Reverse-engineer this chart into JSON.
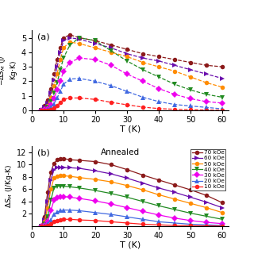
{
  "panel_a": {
    "label": "(a)",
    "ylabel": "-ΔS_M (J/Kg·K)",
    "ylim": [
      0,
      5.5
    ],
    "yticks": [
      0,
      1,
      2,
      3,
      4,
      5
    ],
    "xlim": [
      0,
      62
    ],
    "xticks": [
      0,
      10,
      20,
      30,
      40,
      50,
      60
    ]
  },
  "panel_b": {
    "label": "(b)",
    "ylabel": "ΔS_M (J/Kg-K)",
    "ylim": [
      0,
      13
    ],
    "yticks": [
      2,
      4,
      6,
      8,
      10,
      12
    ],
    "xlim": [
      0,
      62
    ],
    "xticks": [
      0,
      10,
      20,
      30,
      40,
      50,
      60
    ],
    "annotation": "Annealed"
  },
  "xlabel": "T (K)",
  "series": [
    {
      "label": "70 kOe",
      "color": "#8B1A1A",
      "marker": "o",
      "markersize": 4,
      "top_T": [
        3,
        4,
        5,
        6,
        7,
        8,
        9,
        10,
        12,
        15,
        20,
        25,
        30,
        35,
        40,
        45,
        50,
        55,
        60
      ],
      "top_Y": [
        0.0,
        0.3,
        0.7,
        1.5,
        2.5,
        3.5,
        4.3,
        5.0,
        5.2,
        5.0,
        4.8,
        4.5,
        4.2,
        3.9,
        3.7,
        3.5,
        3.3,
        3.1,
        3.0
      ],
      "bot_T": [
        3,
        4,
        5,
        6,
        7,
        8,
        9,
        10,
        12,
        15,
        20,
        25,
        30,
        35,
        40,
        45,
        50,
        55,
        60
      ],
      "bot_Y": [
        0.0,
        1.5,
        5.5,
        8.8,
        10.2,
        10.8,
        11.0,
        11.0,
        10.8,
        10.7,
        10.5,
        10.0,
        9.2,
        8.3,
        7.5,
        6.7,
        5.9,
        5.0,
        3.8
      ]
    },
    {
      "label": "60 kOe",
      "color": "#6A0DAD",
      "marker": ">",
      "markersize": 4,
      "top_T": [
        3,
        4,
        5,
        6,
        7,
        8,
        9,
        10,
        12,
        15,
        20,
        25,
        30,
        35,
        40,
        45,
        50,
        55,
        60
      ],
      "top_Y": [
        0.0,
        0.2,
        0.5,
        1.2,
        2.1,
        3.0,
        4.0,
        4.8,
        5.0,
        4.9,
        4.6,
        4.3,
        3.9,
        3.6,
        3.4,
        3.1,
        2.8,
        2.5,
        2.2
      ],
      "bot_T": [
        3,
        4,
        5,
        6,
        7,
        8,
        9,
        10,
        12,
        15,
        20,
        25,
        30,
        35,
        40,
        45,
        50,
        55,
        60
      ],
      "bot_Y": [
        0.0,
        1.0,
        4.0,
        7.5,
        9.2,
        9.6,
        9.6,
        9.5,
        9.5,
        9.4,
        9.0,
        8.5,
        7.8,
        7.0,
        6.2,
        5.5,
        4.7,
        3.9,
        3.0
      ]
    },
    {
      "label": "50 kOe",
      "color": "#FF8C00",
      "marker": "o",
      "markersize": 4,
      "top_T": [
        3,
        4,
        5,
        6,
        7,
        8,
        9,
        10,
        12,
        15,
        20,
        25,
        30,
        35,
        40,
        45,
        50,
        55,
        60
      ],
      "top_Y": [
        0.0,
        0.1,
        0.3,
        0.9,
        1.7,
        2.5,
        3.5,
        4.3,
        4.7,
        4.6,
        4.3,
        4.0,
        3.7,
        3.3,
        3.0,
        2.7,
        2.3,
        1.9,
        1.6
      ],
      "bot_T": [
        3,
        4,
        5,
        6,
        7,
        8,
        9,
        10,
        12,
        15,
        20,
        25,
        30,
        35,
        40,
        45,
        50,
        55,
        60
      ],
      "bot_Y": [
        0.0,
        0.7,
        3.0,
        6.0,
        7.8,
        8.1,
        8.2,
        8.2,
        8.1,
        7.9,
        7.6,
        7.2,
        6.6,
        5.9,
        5.1,
        4.4,
        3.7,
        3.0,
        2.2
      ]
    },
    {
      "label": "40 kOe",
      "color": "#228B22",
      "marker": "v",
      "markersize": 4,
      "top_T": [
        3,
        4,
        5,
        6,
        7,
        8,
        9,
        10,
        12,
        15,
        20,
        25,
        30,
        35,
        40,
        45,
        50,
        55,
        60
      ],
      "top_Y": [
        0.0,
        0.05,
        0.2,
        0.6,
        1.2,
        1.9,
        2.8,
        3.6,
        4.5,
        5.0,
        4.8,
        4.1,
        3.4,
        2.8,
        2.3,
        1.8,
        1.4,
        1.1,
        0.9
      ],
      "bot_T": [
        3,
        4,
        5,
        6,
        7,
        8,
        9,
        10,
        12,
        15,
        20,
        25,
        30,
        35,
        40,
        45,
        50,
        55,
        60
      ],
      "bot_Y": [
        0.0,
        0.3,
        1.5,
        4.2,
        6.2,
        6.5,
        6.5,
        6.5,
        6.4,
        6.2,
        5.8,
        5.3,
        4.7,
        4.0,
        3.3,
        2.7,
        2.1,
        1.6,
        1.1
      ]
    },
    {
      "label": "30 kOe",
      "color": "#EE00EE",
      "marker": "D",
      "markersize": 4,
      "top_T": [
        3,
        4,
        5,
        6,
        7,
        8,
        9,
        10,
        12,
        15,
        20,
        25,
        30,
        35,
        40,
        45,
        50,
        55,
        60
      ],
      "top_Y": [
        0.0,
        0.03,
        0.1,
        0.4,
        0.8,
        1.4,
        2.0,
        2.7,
        3.3,
        3.6,
        3.5,
        3.1,
        2.5,
        2.0,
        1.5,
        1.1,
        0.8,
        0.6,
        0.5
      ],
      "bot_T": [
        3,
        4,
        5,
        6,
        7,
        8,
        9,
        10,
        12,
        15,
        20,
        25,
        30,
        35,
        40,
        45,
        50,
        55,
        60
      ],
      "bot_Y": [
        0.0,
        0.1,
        0.7,
        2.5,
        4.2,
        4.6,
        4.7,
        4.8,
        4.7,
        4.5,
        4.1,
        3.6,
        3.0,
        2.4,
        1.8,
        1.3,
        0.9,
        0.6,
        0.4
      ]
    },
    {
      "label": "20 kOe",
      "color": "#4169E1",
      "marker": "^",
      "markersize": 4,
      "top_T": [
        3,
        4,
        5,
        6,
        7,
        8,
        9,
        10,
        12,
        15,
        20,
        25,
        30,
        35,
        40,
        45,
        50,
        55,
        60
      ],
      "top_Y": [
        0.0,
        0.01,
        0.05,
        0.2,
        0.45,
        0.85,
        1.3,
        1.8,
        2.15,
        2.2,
        2.0,
        1.7,
        1.3,
        0.9,
        0.6,
        0.4,
        0.3,
        0.2,
        0.1
      ],
      "bot_T": [
        3,
        4,
        5,
        6,
        7,
        8,
        9,
        10,
        12,
        15,
        20,
        25,
        30,
        35,
        40,
        45,
        50,
        55,
        60
      ],
      "bot_Y": [
        0.0,
        0.05,
        0.3,
        1.0,
        1.9,
        2.3,
        2.5,
        2.6,
        2.6,
        2.5,
        2.2,
        1.9,
        1.5,
        1.1,
        0.7,
        0.5,
        0.3,
        0.2,
        0.1
      ]
    },
    {
      "label": "10 kOe",
      "color": "#FF2020",
      "marker": "o",
      "markersize": 4,
      "top_T": [
        3,
        4,
        5,
        6,
        7,
        8,
        9,
        10,
        12,
        15,
        20,
        25,
        30,
        35,
        40,
        45,
        50,
        55,
        60
      ],
      "top_Y": [
        0.0,
        0.0,
        0.02,
        0.08,
        0.18,
        0.35,
        0.55,
        0.75,
        0.85,
        0.85,
        0.75,
        0.55,
        0.38,
        0.22,
        0.12,
        0.07,
        0.04,
        0.02,
        0.01
      ],
      "bot_T": [
        3,
        4,
        5,
        6,
        7,
        8,
        9,
        10,
        12,
        15,
        20,
        25,
        30,
        35,
        40,
        45,
        50,
        55,
        60
      ],
      "bot_Y": [
        0.0,
        0.02,
        0.1,
        0.35,
        0.7,
        0.9,
        1.0,
        1.1,
        1.1,
        1.0,
        0.9,
        0.7,
        0.5,
        0.3,
        0.2,
        0.1,
        0.05,
        0.02,
        0.01
      ]
    }
  ]
}
